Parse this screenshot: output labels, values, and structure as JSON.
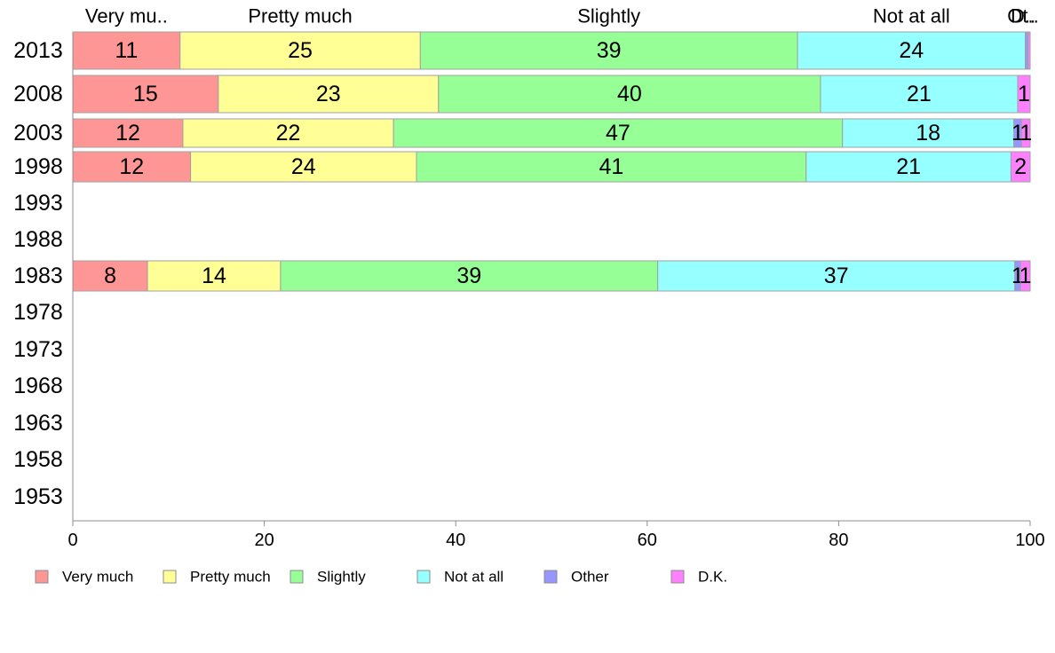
{
  "chart_data": {
    "type": "bar",
    "orientation": "horizontal",
    "stacked": true,
    "categories": [
      "2013",
      "2008",
      "2003",
      "1998",
      "1993",
      "1988",
      "1983",
      "1978",
      "1973",
      "1968",
      "1963",
      "1958",
      "1953"
    ],
    "series": [
      {
        "name": "Very much",
        "color": "#ff9696",
        "values": [
          11.2,
          15.2,
          11.5,
          12.3,
          null,
          null,
          7.8,
          null,
          null,
          null,
          null,
          null,
          null
        ],
        "labels": [
          "11",
          "15",
          "12",
          "12",
          "",
          "",
          "8",
          "",
          "",
          "",
          "",
          "",
          ""
        ]
      },
      {
        "name": "Pretty much",
        "color": "#ffff96",
        "values": [
          25.1,
          23.0,
          22.0,
          23.6,
          null,
          null,
          13.9,
          null,
          null,
          null,
          null,
          null,
          null
        ],
        "labels": [
          "25",
          "23",
          "22",
          "24",
          "",
          "",
          "14",
          "",
          "",
          "",
          "",
          "",
          ""
        ]
      },
      {
        "name": "Slightly",
        "color": "#96ff96",
        "values": [
          39.4,
          39.9,
          46.9,
          40.7,
          null,
          null,
          39.4,
          null,
          null,
          null,
          null,
          null,
          null
        ],
        "labels": [
          "39",
          "40",
          "47",
          "41",
          "",
          "",
          "39",
          "",
          "",
          "",
          "",
          "",
          ""
        ]
      },
      {
        "name": "Not at all",
        "color": "#96ffff",
        "values": [
          23.8,
          20.6,
          17.9,
          21.4,
          null,
          null,
          37.3,
          null,
          null,
          null,
          null,
          null,
          null
        ],
        "labels": [
          "24",
          "21",
          "18",
          "21",
          "",
          "",
          "37",
          "",
          "",
          "",
          "",
          "",
          ""
        ]
      },
      {
        "name": "Other",
        "color": "#9696ff",
        "values": [
          0.3,
          0.0,
          0.8,
          0.0,
          null,
          null,
          0.6,
          null,
          null,
          null,
          null,
          null,
          null
        ],
        "labels": [
          "",
          "",
          "1",
          "",
          "",
          "",
          "1",
          "",
          "",
          "",
          "",
          "",
          ""
        ]
      },
      {
        "name": "D.K.",
        "color": "#ff80ff",
        "values": [
          0.2,
          1.3,
          0.9,
          2.0,
          null,
          null,
          1.0,
          null,
          null,
          null,
          null,
          null,
          null
        ],
        "labels": [
          "",
          "1",
          "1",
          "2",
          "",
          "",
          "1",
          "",
          "",
          "",
          "",
          "",
          ""
        ]
      }
    ],
    "top_labels": [
      "Very mu..",
      "Pretty much",
      "Slightly",
      "Not at all",
      "Ot..",
      "D.."
    ],
    "xlim": [
      0,
      100
    ],
    "xticks": [
      "0",
      "20",
      "40",
      "60",
      "80",
      "100"
    ],
    "grid": false,
    "legend_position": "bottom"
  }
}
